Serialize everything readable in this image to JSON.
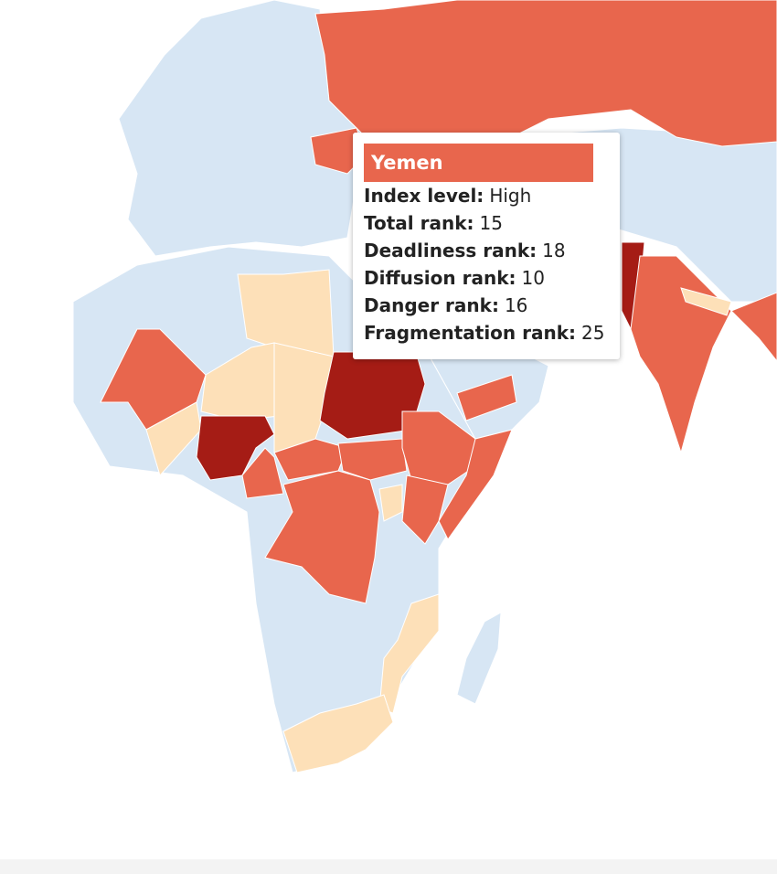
{
  "tooltip": {
    "title": "Yemen",
    "rows": [
      {
        "label": "Index level:",
        "value": "High"
      },
      {
        "label": "Total rank:",
        "value": "15"
      },
      {
        "label": "Deadliness rank:",
        "value": "18"
      },
      {
        "label": "Diffusion rank:",
        "value": "10"
      },
      {
        "label": "Danger rank:",
        "value": "16"
      },
      {
        "label": "Fragmentation rank:",
        "value": "25"
      }
    ]
  }
}
